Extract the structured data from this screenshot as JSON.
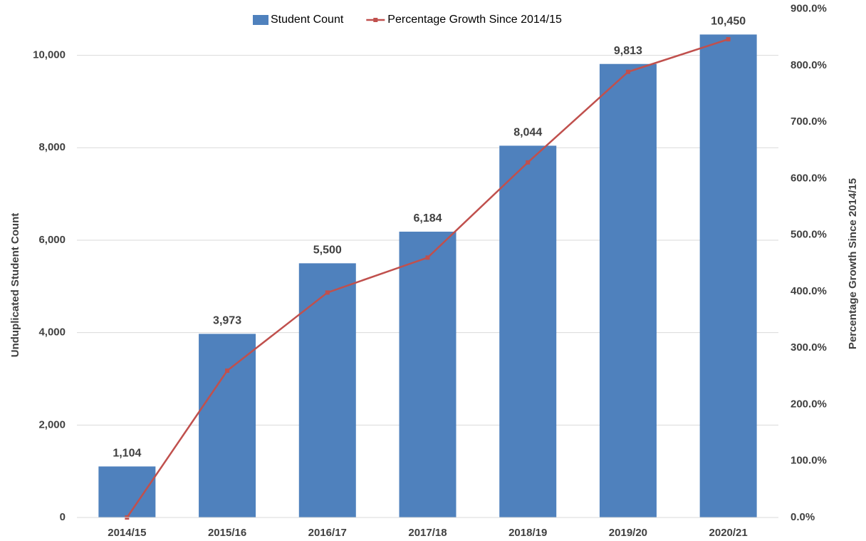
{
  "chart_data": {
    "type": "bar",
    "categories": [
      "2014/15",
      "2015/16",
      "2016/17",
      "2017/18",
      "2018/19",
      "2019/20",
      "2020/21"
    ],
    "series": [
      {
        "name": "Student Count",
        "type": "bar",
        "color": "#4f81bd",
        "values": [
          1104,
          3973,
          5500,
          6184,
          8044,
          9813,
          10450
        ],
        "value_labels": [
          "1,104",
          "3,973",
          "5,500",
          "6,184",
          "8,044",
          "9,813",
          "10,450"
        ]
      },
      {
        "name": "Percentage Growth Since 2014/15",
        "type": "line",
        "color": "#c0504d",
        "axis": "y2",
        "values": [
          0,
          259.9,
          398.2,
          460.1,
          628.6,
          788.9,
          846.6
        ]
      }
    ],
    "ylabel": "Unduplicated Student Count",
    "y2label": "Percentage Growth Since 2014/15",
    "ylim": [
      0,
      11000
    ],
    "yticks": [
      0,
      {
        "value": 2000,
        "label": "2,000"
      },
      {
        "value": 4000,
        "label": "4,000"
      },
      {
        "value": 6000,
        "label": "6,000"
      },
      {
        "value": 8000,
        "label": "8,000"
      },
      {
        "value": 10000,
        "label": "10,000"
      }
    ],
    "y2lim": [
      0,
      900
    ],
    "y2ticks": [
      {
        "value": 0,
        "label": "0.0%"
      },
      {
        "value": 100,
        "label": "100.0%"
      },
      {
        "value": 200,
        "label": "200.0%"
      },
      {
        "value": 300,
        "label": "300.0%"
      },
      {
        "value": 400,
        "label": "400.0%"
      },
      {
        "value": 500,
        "label": "500.0%"
      },
      {
        "value": 600,
        "label": "600.0%"
      },
      {
        "value": 700,
        "label": "700.0%"
      },
      {
        "value": 800,
        "label": "800.0%"
      },
      {
        "value": 900,
        "label": "900.0%"
      }
    ],
    "grid": true,
    "legend": "top"
  }
}
